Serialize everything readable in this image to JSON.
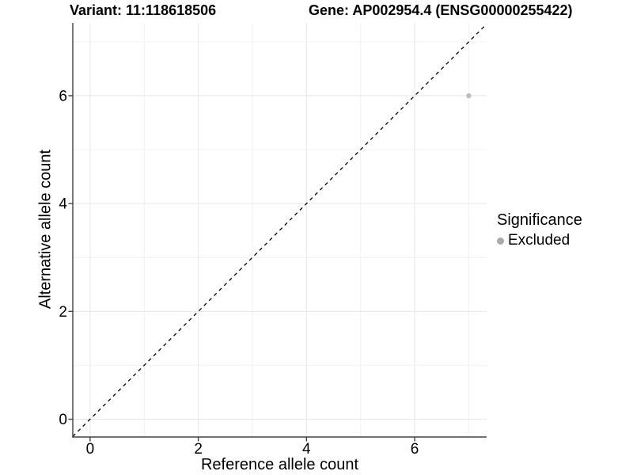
{
  "header": {
    "variant_title": "Variant: 11:118618506",
    "gene_title": "Gene: AP002954.4 (ENSG00000255422)"
  },
  "chart_data": {
    "type": "scatter",
    "xlabel": "Reference allele count",
    "ylabel": "Alternative allele count",
    "xlim": [
      -0.32,
      7.33
    ],
    "ylim": [
      -0.33,
      7.35
    ],
    "x_major_ticks": [
      0,
      2,
      4,
      6
    ],
    "y_major_ticks": [
      0,
      2,
      4,
      6
    ],
    "x_minor_gridlines": [
      1,
      3,
      5,
      7
    ],
    "y_minor_gridlines": [
      1,
      3,
      5,
      7
    ],
    "grid": "major+minor",
    "points": [
      {
        "x": 7,
        "y": 6,
        "series": "Excluded"
      }
    ],
    "identity_line": {
      "slope": 1,
      "intercept": 0,
      "style": "dashed",
      "color": "#000000"
    },
    "legend": {
      "title": "Significance",
      "position": "right",
      "items": [
        {
          "label": "Excluded",
          "marker": "circle",
          "color": "#aaaaaa"
        }
      ]
    },
    "colors": {
      "point": "#bdbdbd",
      "axis": "#404040",
      "tick_label": "#000000",
      "grid_major": "#e6e6e6",
      "grid_minor": "#f1f1f1"
    }
  }
}
